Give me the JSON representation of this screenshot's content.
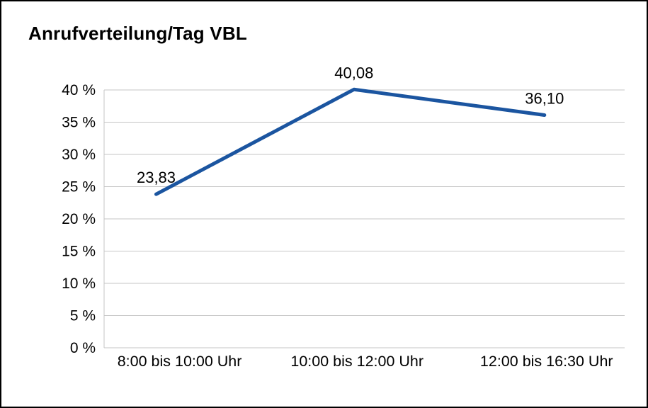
{
  "title": "Anrufverteilung/Tag VBL",
  "chart_data": {
    "type": "line",
    "title": "Anrufverteilung/Tag VBL",
    "categories": [
      "8:00 bis 10:00 Uhr",
      "10:00 bis 12:00 Uhr",
      "12:00 bis 16:30 Uhr"
    ],
    "values": [
      23.83,
      40.08,
      36.1
    ],
    "value_labels": [
      "23,83",
      "40,08",
      "36,10"
    ],
    "xlabel": "",
    "ylabel": "",
    "ylim": [
      0,
      40
    ],
    "ytick_step": 5,
    "ytick_labels": [
      "0 %",
      "5 %",
      "10 %",
      "15 %",
      "20 %",
      "25 %",
      "30 %",
      "35 %",
      "40 %"
    ],
    "ytick_suffix": " %",
    "grid": true,
    "legend": false,
    "line_color": "#1b55a0",
    "grid_color": "#c6c6c6",
    "text_color": "#000000"
  }
}
